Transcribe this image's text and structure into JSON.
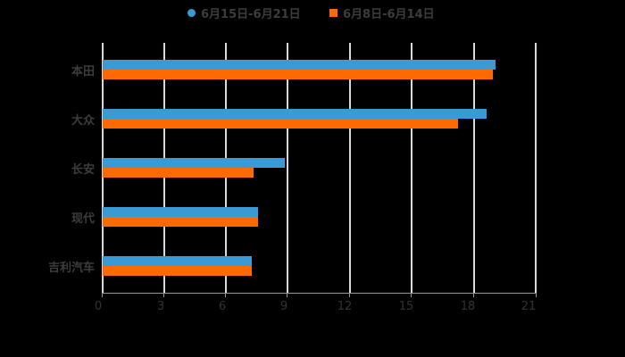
{
  "chart_data": {
    "type": "bar",
    "orientation": "horizontal",
    "title": "",
    "xlabel": "",
    "ylabel": "",
    "categories": [
      "本田",
      "大众",
      "长安",
      "现代",
      "吉利汽车"
    ],
    "series": [
      {
        "name": "6月15日-6月21日",
        "color": "#3a9ad5",
        "values": [
          19.0,
          18.6,
          8.8,
          7.5,
          7.2
        ]
      },
      {
        "name": "6月8日-6月14日",
        "color": "#ff6a00",
        "values": [
          18.9,
          17.2,
          7.3,
          7.5,
          7.2
        ]
      }
    ],
    "xlim": [
      0,
      21
    ],
    "xticks": [
      "0",
      "3",
      "6",
      "9",
      "12",
      "15",
      "18",
      "21"
    ],
    "grid": true,
    "legend_position": "top"
  },
  "legend": {
    "items": [
      {
        "label": "6月15日-6月21日",
        "color": "#3a9ad5",
        "shape": "circle"
      },
      {
        "label": "6月8日-6月14日",
        "color": "#ff6a00",
        "shape": "square"
      }
    ]
  }
}
